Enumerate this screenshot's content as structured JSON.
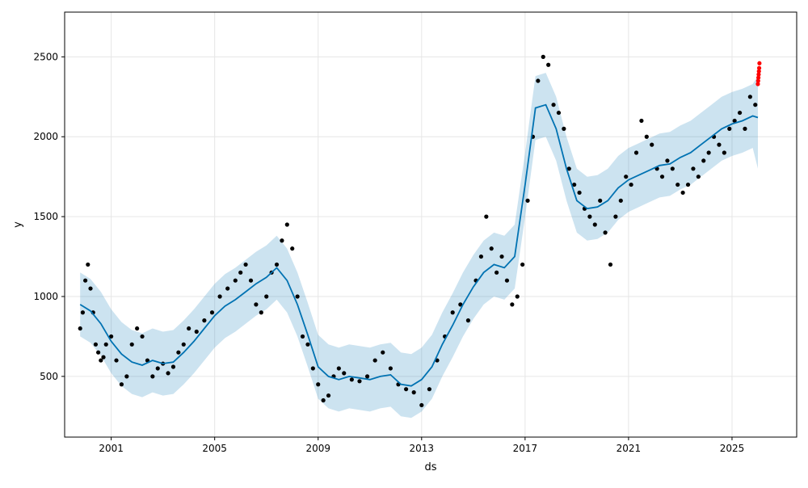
{
  "chart_data": {
    "type": "line",
    "title": "",
    "xlabel": "ds",
    "ylabel": "y",
    "xlim": [
      1999.2,
      2027.5
    ],
    "ylim": [
      120,
      2780
    ],
    "x_ticks": [
      2001,
      2005,
      2009,
      2013,
      2017,
      2021,
      2025
    ],
    "x_tick_labels": [
      "2001",
      "2005",
      "2009",
      "2013",
      "2017",
      "2021",
      "2025"
    ],
    "y_ticks": [
      500,
      1000,
      1500,
      2000,
      2500
    ],
    "y_tick_labels": [
      "500",
      "1000",
      "1500",
      "2000",
      "2500"
    ],
    "grid": true,
    "colors": {
      "forecast": "#0072B2",
      "uncertainty_band": "#0072B2",
      "observed": "#000000",
      "test_points": "#ff0000"
    },
    "series": [
      {
        "role": "forecast",
        "style": "line",
        "x": [
          1999.8,
          2000.2,
          2000.6,
          2001.0,
          2001.4,
          2001.8,
          2002.2,
          2002.6,
          2003.0,
          2003.4,
          2003.8,
          2004.2,
          2004.6,
          2005.0,
          2005.4,
          2005.8,
          2006.2,
          2006.6,
          2007.0,
          2007.4,
          2007.8,
          2008.2,
          2008.6,
          2009.0,
          2009.4,
          2009.8,
          2010.2,
          2010.6,
          2011.0,
          2011.4,
          2011.8,
          2012.2,
          2012.6,
          2013.0,
          2013.4,
          2013.8,
          2014.2,
          2014.6,
          2015.0,
          2015.4,
          2015.8,
          2016.2,
          2016.6,
          2017.0,
          2017.4,
          2017.8,
          2018.2,
          2018.6,
          2019.0,
          2019.4,
          2019.8,
          2020.2,
          2020.6,
          2021.0,
          2021.4,
          2021.8,
          2022.2,
          2022.6,
          2023.0,
          2023.4,
          2023.8,
          2024.2,
          2024.6,
          2025.0,
          2025.4,
          2025.8,
          2026.0
        ],
        "y": [
          950,
          910,
          830,
          720,
          640,
          590,
          570,
          600,
          580,
          590,
          650,
          720,
          800,
          880,
          940,
          980,
          1030,
          1080,
          1120,
          1180,
          1100,
          950,
          760,
          560,
          500,
          480,
          500,
          490,
          480,
          500,
          510,
          450,
          440,
          480,
          560,
          700,
          820,
          950,
          1060,
          1150,
          1200,
          1180,
          1250,
          1700,
          2180,
          2200,
          2050,
          1800,
          1600,
          1550,
          1560,
          1600,
          1680,
          1730,
          1760,
          1790,
          1820,
          1830,
          1870,
          1900,
          1950,
          2000,
          2050,
          2080,
          2100,
          2130,
          2120
        ]
      },
      {
        "role": "uncertainty_band",
        "style": "area",
        "x": [
          1999.8,
          2000.2,
          2000.6,
          2001.0,
          2001.4,
          2001.8,
          2002.2,
          2002.6,
          2003.0,
          2003.4,
          2003.8,
          2004.2,
          2004.6,
          2005.0,
          2005.4,
          2005.8,
          2006.2,
          2006.6,
          2007.0,
          2007.4,
          2007.8,
          2008.2,
          2008.6,
          2009.0,
          2009.4,
          2009.8,
          2010.2,
          2010.6,
          2011.0,
          2011.4,
          2011.8,
          2012.2,
          2012.6,
          2013.0,
          2013.4,
          2013.8,
          2014.2,
          2014.6,
          2015.0,
          2015.4,
          2015.8,
          2016.2,
          2016.6,
          2017.0,
          2017.4,
          2017.8,
          2018.2,
          2018.6,
          2019.0,
          2019.4,
          2019.8,
          2020.2,
          2020.6,
          2021.0,
          2021.4,
          2021.8,
          2022.2,
          2022.6,
          2023.0,
          2023.4,
          2023.8,
          2024.2,
          2024.6,
          2025.0,
          2025.4,
          2025.8,
          2026.0
        ],
        "upper": [
          1150,
          1110,
          1030,
          920,
          840,
          790,
          770,
          800,
          780,
          790,
          850,
          920,
          1000,
          1080,
          1140,
          1180,
          1230,
          1280,
          1320,
          1380,
          1300,
          1150,
          960,
          760,
          700,
          680,
          700,
          690,
          680,
          700,
          710,
          650,
          640,
          680,
          760,
          900,
          1020,
          1150,
          1260,
          1350,
          1400,
          1380,
          1450,
          1900,
          2380,
          2400,
          2250,
          2000,
          1800,
          1750,
          1760,
          1800,
          1880,
          1930,
          1960,
          1990,
          2020,
          2030,
          2070,
          2100,
          2150,
          2200,
          2250,
          2280,
          2300,
          2330,
          2380
        ],
        "lower": [
          750,
          710,
          630,
          520,
          440,
          390,
          370,
          400,
          380,
          390,
          450,
          520,
          600,
          680,
          740,
          780,
          830,
          880,
          920,
          980,
          900,
          750,
          560,
          360,
          300,
          280,
          300,
          290,
          280,
          300,
          310,
          250,
          240,
          280,
          360,
          500,
          620,
          750,
          860,
          950,
          1000,
          980,
          1050,
          1500,
          1980,
          2000,
          1850,
          1600,
          1400,
          1350,
          1360,
          1400,
          1480,
          1530,
          1560,
          1590,
          1620,
          1630,
          1670,
          1700,
          1750,
          1800,
          1850,
          1880,
          1900,
          1930,
          1800
        ]
      },
      {
        "role": "observed",
        "style": "points",
        "x": [
          1999.8,
          1999.9,
          2000.0,
          2000.1,
          2000.2,
          2000.3,
          2000.4,
          2000.5,
          2000.6,
          2000.7,
          2000.8,
          2001.0,
          2001.2,
          2001.4,
          2001.6,
          2001.8,
          2002.0,
          2002.2,
          2002.4,
          2002.6,
          2002.8,
          2003.0,
          2003.2,
          2003.4,
          2003.6,
          2003.8,
          2004.0,
          2004.3,
          2004.6,
          2004.9,
          2005.2,
          2005.5,
          2005.8,
          2006.0,
          2006.2,
          2006.4,
          2006.6,
          2006.8,
          2007.0,
          2007.2,
          2007.4,
          2007.6,
          2007.8,
          2008.0,
          2008.2,
          2008.4,
          2008.6,
          2008.8,
          2009.0,
          2009.2,
          2009.4,
          2009.6,
          2009.8,
          2010.0,
          2010.3,
          2010.6,
          2010.9,
          2011.2,
          2011.5,
          2011.8,
          2012.1,
          2012.4,
          2012.7,
          2013.0,
          2013.3,
          2013.6,
          2013.9,
          2014.2,
          2014.5,
          2014.8,
          2015.1,
          2015.3,
          2015.5,
          2015.7,
          2015.9,
          2016.1,
          2016.3,
          2016.5,
          2016.7,
          2016.9,
          2017.1,
          2017.3,
          2017.5,
          2017.7,
          2017.9,
          2018.1,
          2018.3,
          2018.5,
          2018.7,
          2018.9,
          2019.1,
          2019.3,
          2019.5,
          2019.7,
          2019.9,
          2020.1,
          2020.3,
          2020.5,
          2020.7,
          2020.9,
          2021.1,
          2021.3,
          2021.5,
          2021.7,
          2021.9,
          2022.1,
          2022.3,
          2022.5,
          2022.7,
          2022.9,
          2023.1,
          2023.3,
          2023.5,
          2023.7,
          2023.9,
          2024.1,
          2024.3,
          2024.5,
          2024.7,
          2024.9,
          2025.1,
          2025.3,
          2025.5,
          2025.7,
          2025.9
        ],
        "y": [
          800,
          900,
          1100,
          1200,
          1050,
          900,
          700,
          650,
          600,
          620,
          700,
          750,
          600,
          450,
          500,
          700,
          800,
          750,
          600,
          500,
          550,
          580,
          520,
          560,
          650,
          700,
          800,
          780,
          850,
          900,
          1000,
          1050,
          1100,
          1150,
          1200,
          1100,
          950,
          900,
          1000,
          1150,
          1200,
          1350,
          1450,
          1300,
          1000,
          750,
          700,
          550,
          450,
          350,
          380,
          500,
          550,
          520,
          480,
          470,
          500,
          600,
          650,
          550,
          450,
          420,
          400,
          320,
          420,
          600,
          750,
          900,
          950,
          850,
          1100,
          1250,
          1500,
          1300,
          1150,
          1250,
          1100,
          950,
          1000,
          1200,
          1600,
          2000,
          2350,
          2500,
          2450,
          2200,
          2150,
          2050,
          1800,
          1700,
          1650,
          1550,
          1500,
          1450,
          1600,
          1400,
          1200,
          1500,
          1600,
          1750,
          1700,
          1900,
          2100,
          2000,
          1950,
          1800,
          1750,
          1850,
          1800,
          1700,
          1650,
          1700,
          1800,
          1750,
          1850,
          1900,
          2000,
          1950,
          1900,
          2050,
          2100,
          2150,
          2050,
          2250,
          2200
        ]
      },
      {
        "role": "test_points",
        "style": "points",
        "x": [
          2026.0,
          2026.01,
          2026.02,
          2026.03,
          2026.04,
          2026.05,
          2026.06
        ],
        "y": [
          2330,
          2350,
          2370,
          2390,
          2410,
          2430,
          2460
        ]
      }
    ]
  }
}
